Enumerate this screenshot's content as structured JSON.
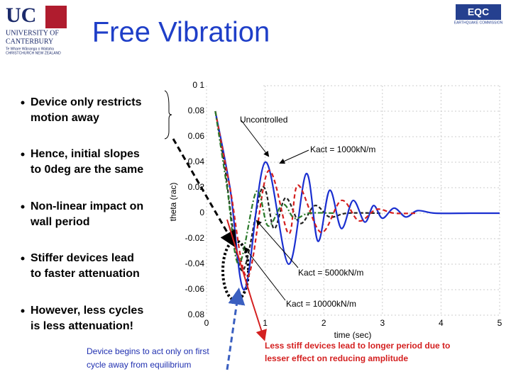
{
  "header": {
    "title": "Free Vibration",
    "logo_left": [
      "UC",
      "UNIVERSITY OF",
      "CANTERBURY",
      "Te Whare Wānanga o Waitaha",
      "CHRISTCHURCH NEW ZEALAND"
    ],
    "logo_right": [
      "EQC",
      "EARTHQUAKE COMMISSION"
    ]
  },
  "bullets": [
    [
      "Device only restricts",
      "motion away"
    ],
    [
      "Hence, initial slopes",
      "to 0deg are the same"
    ],
    [
      "Non-linear impact on",
      "wall period"
    ],
    [
      "Stiffer devices lead",
      "to faster attenuation"
    ],
    [
      "However, less cycles",
      "is less attenuation!"
    ]
  ],
  "notes": {
    "left": [
      "Device begins to act only on first",
      "cycle away from equilibrium"
    ],
    "right": [
      "Less stiff devices lead  to longer period due to",
      "lesser effect on reducing amplitude"
    ]
  },
  "chart_data": {
    "type": "line",
    "xlabel": "time (sec)",
    "ylabel": "theta (rac)",
    "xlim": [
      0,
      5
    ],
    "xticks": [
      0,
      1,
      2,
      3,
      4,
      5
    ],
    "ylim": [
      -0.08,
      0.1
    ],
    "yticks": [
      {
        "value": 0.1,
        "label": "0 1"
      },
      0.08,
      0.06,
      0.04,
      0.02,
      0,
      -0.02,
      -0.04,
      -0.06,
      {
        "value": -0.08,
        "label": "0.08"
      }
    ],
    "grid": true,
    "series": [
      {
        "name": "Uncontrolled",
        "color": "#222222",
        "x": [
          0.15,
          0.3,
          0.6,
          0.95,
          1.15,
          1.35,
          1.6,
          1.85,
          2.1,
          2.4,
          3.0
        ],
        "values": [
          0.08,
          0.04,
          -0.045,
          0.02,
          -0.012,
          0.012,
          -0.008,
          0.006,
          -0.003,
          0,
          0
        ]
      },
      {
        "name": "Kact = 1000kN/m",
        "color": "#1a2fd0",
        "x": [
          0.15,
          0.4,
          0.65,
          1.0,
          1.4,
          1.7,
          1.9,
          2.1,
          2.3,
          2.5,
          2.7,
          2.85,
          3.0,
          3.2,
          3.4,
          3.6,
          3.9,
          4.5,
          5.0
        ],
        "values": [
          0.08,
          0.02,
          -0.06,
          0.04,
          -0.04,
          0.031,
          -0.022,
          0.018,
          -0.012,
          0.01,
          -0.007,
          0.006,
          -0.004,
          0.004,
          -0.003,
          0.002,
          0,
          0,
          0
        ]
      },
      {
        "name": "Kact = 5000kN/m",
        "color": "#d42020",
        "x": [
          0.15,
          0.4,
          0.7,
          1.05,
          1.4,
          1.56,
          1.95,
          2.3,
          2.6,
          2.9,
          3.2,
          3.6
        ],
        "values": [
          0.08,
          0.02,
          -0.05,
          0.033,
          -0.016,
          0.022,
          -0.015,
          0.01,
          -0.006,
          0.003,
          0,
          0
        ]
      },
      {
        "name": "Kact = 10000kN/m",
        "color": "#2a7a2a",
        "x": [
          0.15,
          0.35,
          0.55,
          0.85,
          1.05,
          1.3,
          1.5,
          1.75,
          2.2
        ],
        "values": [
          0.08,
          0.02,
          -0.04,
          0.017,
          -0.01,
          0.007,
          -0.004,
          0,
          0
        ]
      }
    ]
  }
}
